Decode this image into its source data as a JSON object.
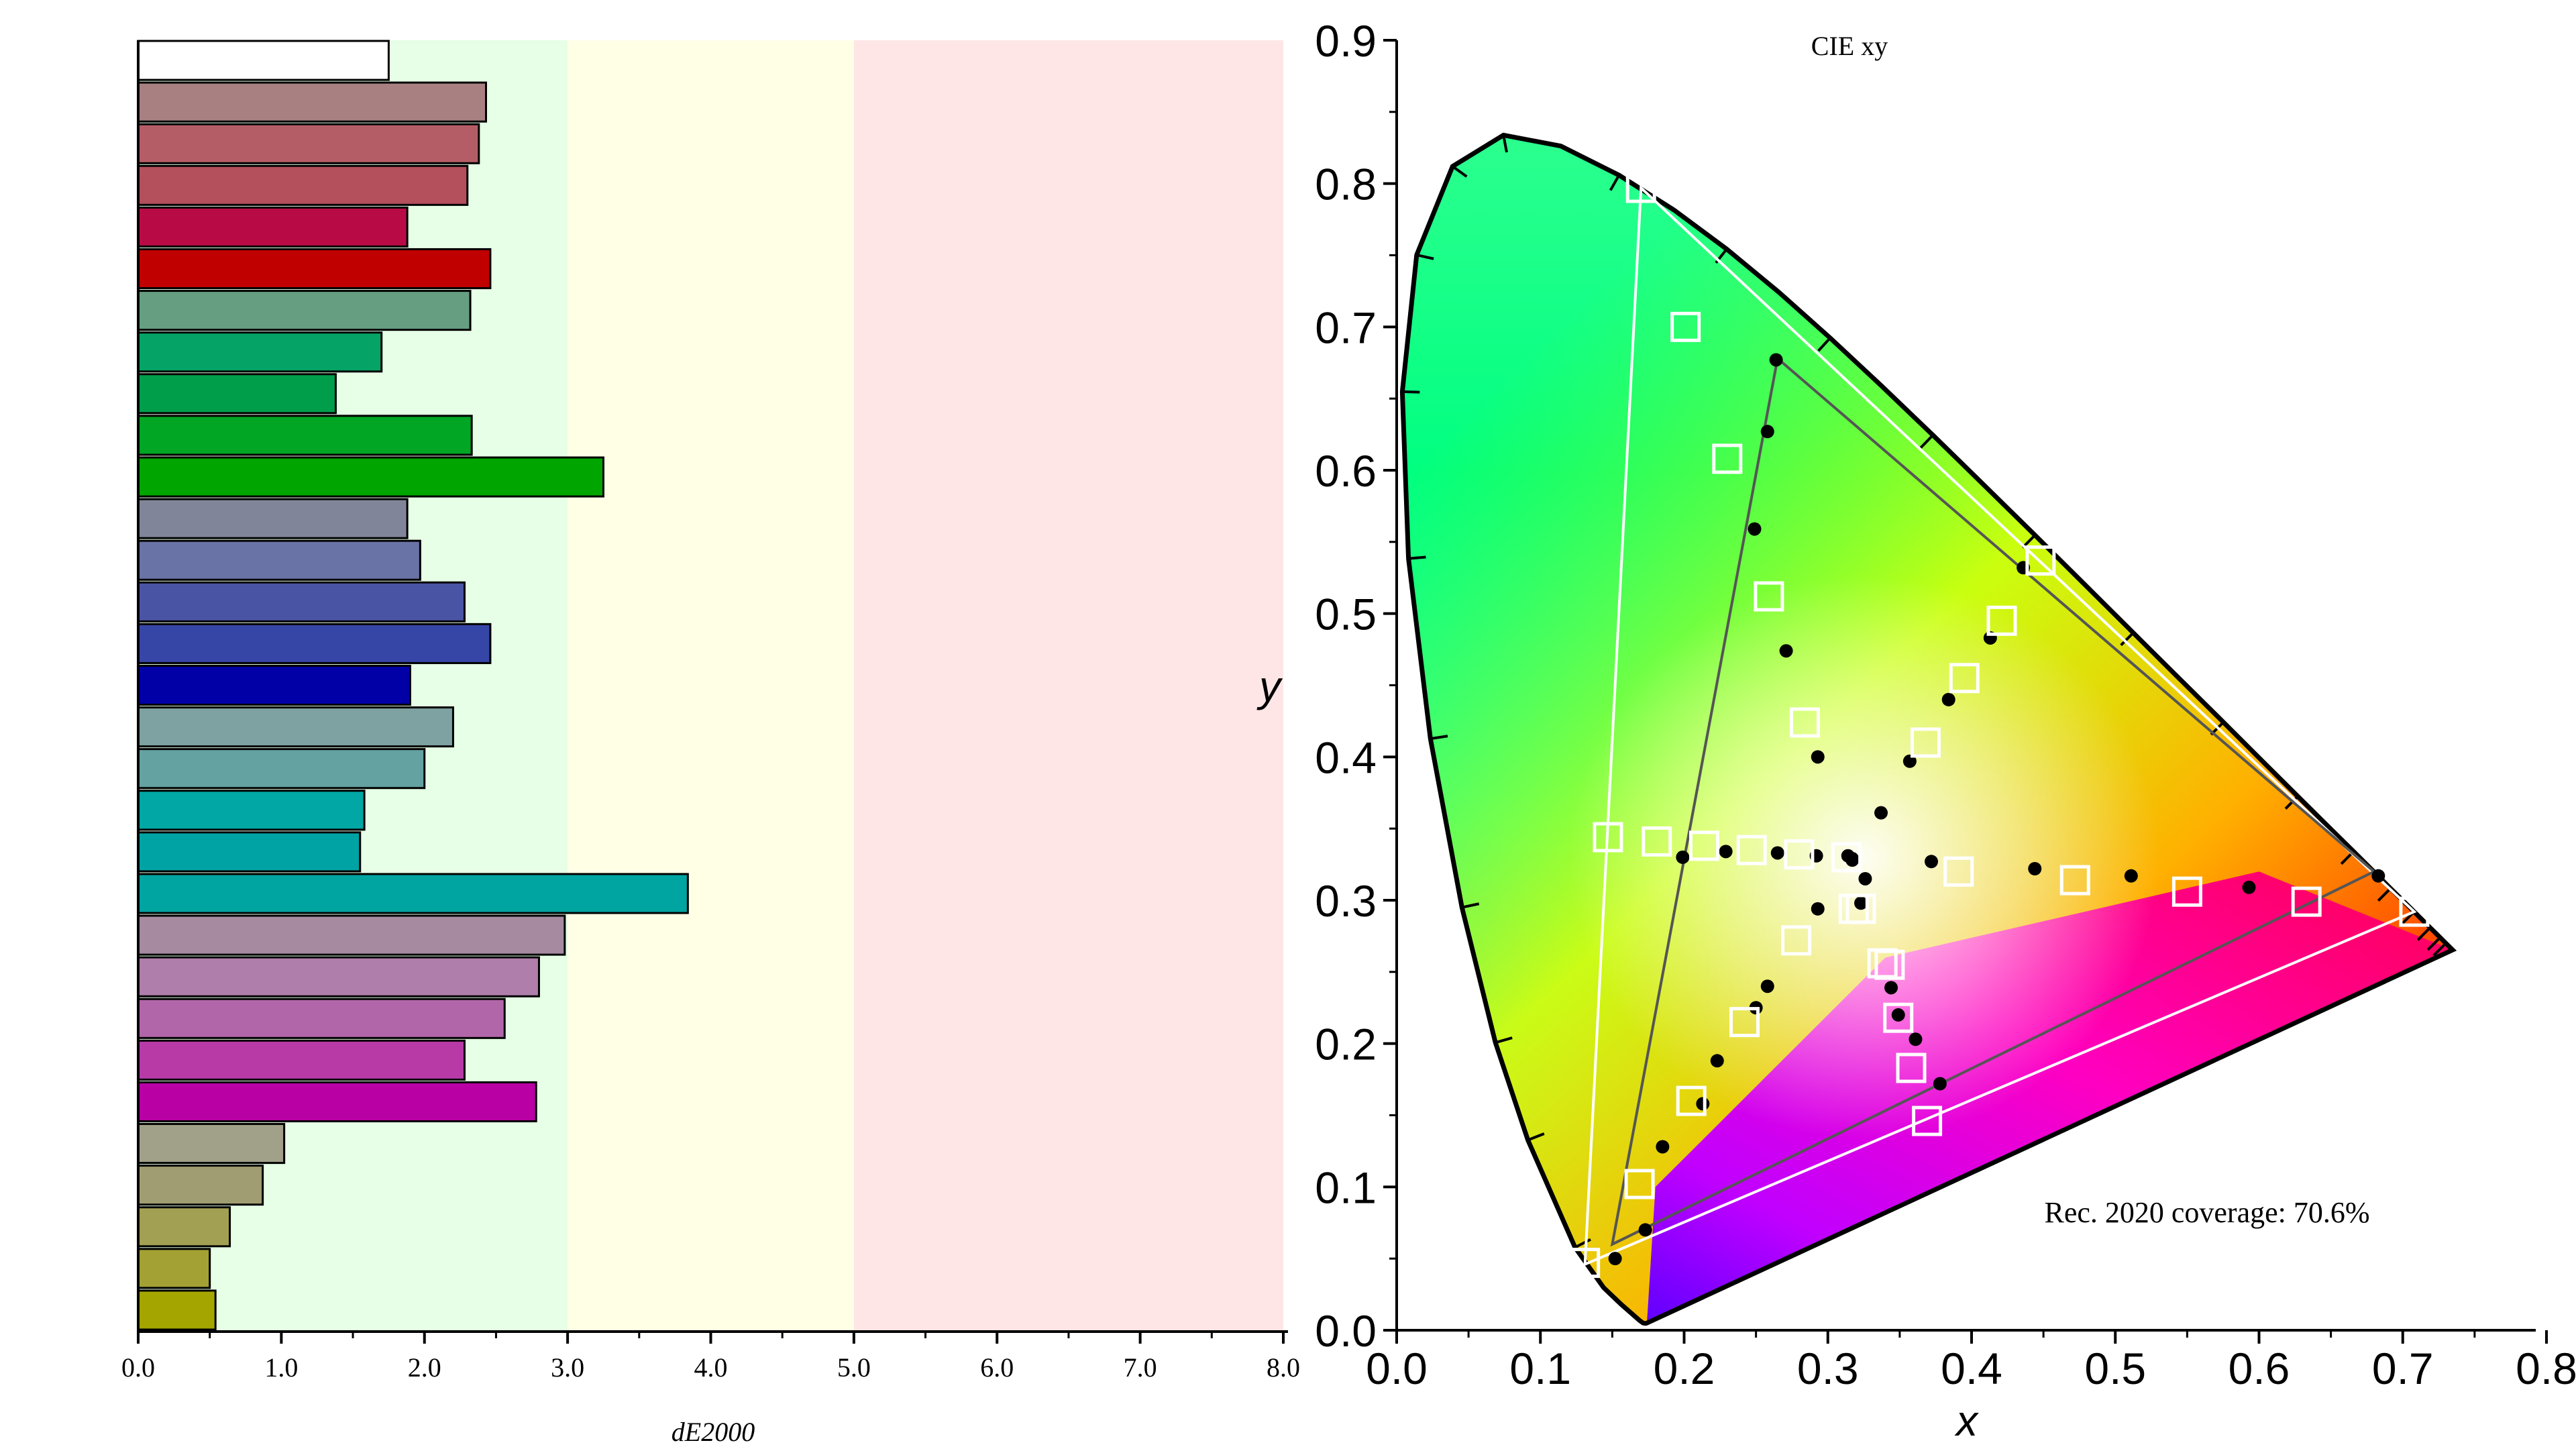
{
  "left_chart": {
    "xlabel": "dE2000",
    "xticks": [
      "0.0",
      "1.0",
      "2.0",
      "3.0",
      "4.0",
      "5.0",
      "6.0",
      "7.0",
      "8.0"
    ],
    "bands": [
      {
        "from": 0,
        "to": 3,
        "color": "#e6ffe6"
      },
      {
        "from": 3,
        "to": 5,
        "color": "#ffffe6"
      },
      {
        "from": 5,
        "to": 8,
        "color": "#ffe6e6"
      }
    ]
  },
  "right_chart": {
    "title": "CIE xy",
    "xlabel": "x",
    "ylabel": "y",
    "xticks": [
      "0.0",
      "0.1",
      "0.2",
      "0.3",
      "0.4",
      "0.5",
      "0.6",
      "0.7",
      "0.8"
    ],
    "yticks": [
      "0.0",
      "0.1",
      "0.2",
      "0.3",
      "0.4",
      "0.5",
      "0.6",
      "0.7",
      "0.8",
      "0.9"
    ],
    "coverage_label": "Rec. 2020 coverage: 70.6%"
  },
  "chart_data": [
    {
      "type": "bar",
      "orientation": "horizontal",
      "xlabel": "dE2000",
      "xlim": [
        0,
        8
      ],
      "grid": false,
      "values": [
        1.75,
        2.43,
        2.38,
        2.3,
        1.88,
        2.46,
        2.32,
        1.7,
        1.38,
        2.33,
        3.25,
        1.88,
        1.97,
        2.28,
        2.46,
        1.9,
        2.2,
        2.0,
        1.58,
        1.55,
        3.84,
        2.98,
        2.8,
        2.56,
        2.28,
        2.78,
        1.02,
        0.87,
        0.64,
        0.5,
        0.54
      ],
      "colors": [
        "#ffffff",
        "#a88082",
        "#b55d66",
        "#b44f5c",
        "#b80b46",
        "#c00000",
        "#669e81",
        "#05a466",
        "#009e4b",
        "#00a624",
        "#00a500",
        "#818599",
        "#6a73a5",
        "#4955a4",
        "#3646a7",
        "#0000a6",
        "#7ea1a1",
        "#64a2a2",
        "#00a7a4",
        "#00a3a3",
        "#00a4a1",
        "#a68aa0",
        "#af7eab",
        "#b266aa",
        "#b73aa7",
        "#b800a5",
        "#a0a188",
        "#a19d72",
        "#a2a052",
        "#a3a133",
        "#a5a500"
      ]
    },
    {
      "type": "scatter",
      "xlabel": "x",
      "ylabel": "y",
      "title": "CIE xy",
      "xlim": [
        0,
        0.8
      ],
      "ylim": [
        0,
        0.9
      ],
      "grid": false,
      "series": [
        {
          "marker": "circle",
          "color": "#000000",
          "x": [
            0.264,
            0.258,
            0.249,
            0.271,
            0.293,
            0.337,
            0.357,
            0.384,
            0.413,
            0.436,
            0.199,
            0.229,
            0.265,
            0.292,
            0.317,
            0.372,
            0.444,
            0.511,
            0.593,
            0.683,
            0.326,
            0.317,
            0.293,
            0.258,
            0.223,
            0.185,
            0.152,
            0.173,
            0.213,
            0.25,
            0.344,
            0.349,
            0.361,
            0.378,
            0.323,
            0.314
          ],
          "y": [
            0.677,
            0.627,
            0.559,
            0.474,
            0.4,
            0.361,
            0.397,
            0.44,
            0.483,
            0.532,
            0.33,
            0.334,
            0.333,
            0.331,
            0.328,
            0.327,
            0.322,
            0.317,
            0.309,
            0.317,
            0.315,
            0.329,
            0.294,
            0.24,
            0.188,
            0.128,
            0.05,
            0.07,
            0.158,
            0.225,
            0.239,
            0.22,
            0.203,
            0.172,
            0.298,
            0.331
          ]
        },
        {
          "marker": "square",
          "color": "#ffffff",
          "x": [
            0.17,
            0.201,
            0.23,
            0.259,
            0.284,
            0.318,
            0.343,
            0.368,
            0.395,
            0.421,
            0.448,
            0.147,
            0.181,
            0.214,
            0.247,
            0.28,
            0.313,
            0.391,
            0.472,
            0.55,
            0.633,
            0.708,
            0.323,
            0.338,
            0.349,
            0.358,
            0.369,
            0.278,
            0.242,
            0.205,
            0.169,
            0.131
          ],
          "y": [
            0.797,
            0.7,
            0.608,
            0.512,
            0.424,
            0.294,
            0.255,
            0.41,
            0.455,
            0.495,
            0.537,
            0.344,
            0.341,
            0.338,
            0.335,
            0.332,
            0.33,
            0.32,
            0.314,
            0.306,
            0.299,
            0.292,
            0.294,
            0.256,
            0.218,
            0.183,
            0.146,
            0.272,
            0.215,
            0.16,
            0.102,
            0.047
          ]
        }
      ],
      "triangles": [
        {
          "color": "#ffffff",
          "points": [
            [
              0.17,
              0.797
            ],
            [
              0.708,
              0.292
            ],
            [
              0.131,
              0.046
            ]
          ]
        },
        {
          "color": "#555555",
          "points": [
            [
              0.265,
              0.678
            ],
            [
              0.68,
              0.32
            ],
            [
              0.15,
              0.06
            ]
          ]
        }
      ],
      "annotations": [
        "Rec. 2020 coverage: 70.6%"
      ]
    }
  ]
}
